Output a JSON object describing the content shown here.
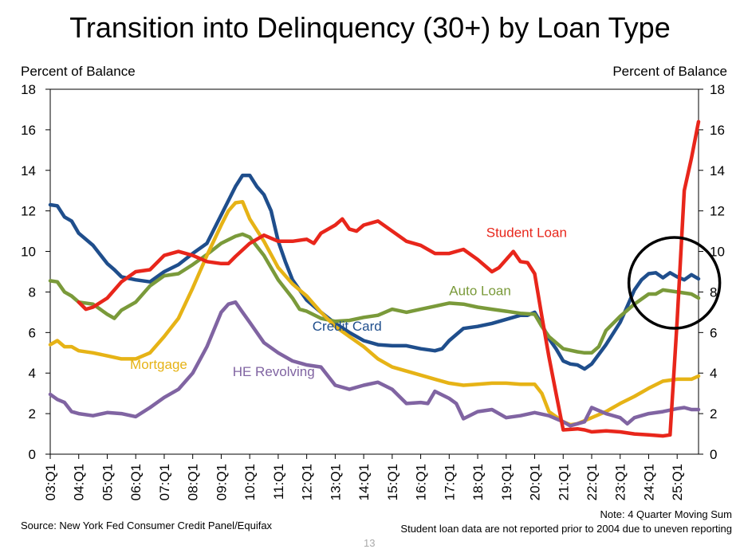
{
  "chart_data": {
    "type": "line",
    "title": "Transition into Delinquency (30+) by Loan Type",
    "ylabel_left": "Percent of Balance",
    "ylabel_right": "Percent of Balance",
    "ylim": [
      0,
      18
    ],
    "yticks": [
      0,
      2,
      4,
      6,
      8,
      10,
      12,
      14,
      16,
      18
    ],
    "xlim": [
      2003.0,
      2025.75
    ],
    "xtick_labels": [
      "03:Q1",
      "04:Q1",
      "05:Q1",
      "06:Q1",
      "07:Q1",
      "08:Q1",
      "09:Q1",
      "10:Q1",
      "11:Q1",
      "12:Q1",
      "13:Q1",
      "14:Q1",
      "15:Q1",
      "16:Q1",
      "17:Q1",
      "18:Q1",
      "19:Q1",
      "20:Q1",
      "21:Q1",
      "22:Q1",
      "23:Q1",
      "24:Q1",
      "25:Q1"
    ],
    "series": [
      {
        "name": "Credit Card",
        "color": "#1f4e8c",
        "label_at": [
          2012.2,
          6.1
        ],
        "points": [
          [
            2003.0,
            12.3
          ],
          [
            2003.25,
            12.25
          ],
          [
            2003.5,
            11.7
          ],
          [
            2003.75,
            11.5
          ],
          [
            2004.0,
            10.9
          ],
          [
            2004.5,
            10.3
          ],
          [
            2005.0,
            9.4
          ],
          [
            2005.25,
            9.1
          ],
          [
            2005.5,
            8.75
          ],
          [
            2006.0,
            8.6
          ],
          [
            2006.5,
            8.5
          ],
          [
            2007.0,
            9.0
          ],
          [
            2007.5,
            9.35
          ],
          [
            2008.0,
            9.9
          ],
          [
            2008.5,
            10.4
          ],
          [
            2009.0,
            11.8
          ],
          [
            2009.5,
            13.2
          ],
          [
            2009.75,
            13.75
          ],
          [
            2010.0,
            13.75
          ],
          [
            2010.25,
            13.2
          ],
          [
            2010.5,
            12.8
          ],
          [
            2010.75,
            12.0
          ],
          [
            2011.0,
            10.5
          ],
          [
            2011.25,
            9.5
          ],
          [
            2011.5,
            8.6
          ],
          [
            2012.0,
            7.6
          ],
          [
            2012.5,
            7.0
          ],
          [
            2013.0,
            6.45
          ],
          [
            2013.5,
            6.0
          ],
          [
            2014.0,
            5.6
          ],
          [
            2014.5,
            5.4
          ],
          [
            2015.0,
            5.35
          ],
          [
            2015.5,
            5.35
          ],
          [
            2016.0,
            5.2
          ],
          [
            2016.5,
            5.1
          ],
          [
            2016.75,
            5.2
          ],
          [
            2017.0,
            5.6
          ],
          [
            2017.5,
            6.2
          ],
          [
            2018.0,
            6.3
          ],
          [
            2018.5,
            6.45
          ],
          [
            2019.0,
            6.65
          ],
          [
            2019.5,
            6.85
          ],
          [
            2019.75,
            6.85
          ],
          [
            2020.0,
            7.0
          ],
          [
            2020.25,
            6.4
          ],
          [
            2020.5,
            5.7
          ],
          [
            2020.75,
            5.2
          ],
          [
            2021.0,
            4.6
          ],
          [
            2021.25,
            4.45
          ],
          [
            2021.5,
            4.4
          ],
          [
            2021.75,
            4.2
          ],
          [
            2022.0,
            4.45
          ],
          [
            2022.5,
            5.4
          ],
          [
            2023.0,
            6.5
          ],
          [
            2023.25,
            7.3
          ],
          [
            2023.5,
            8.1
          ],
          [
            2023.75,
            8.6
          ],
          [
            2024.0,
            8.9
          ],
          [
            2024.25,
            8.95
          ],
          [
            2024.5,
            8.7
          ],
          [
            2024.75,
            8.95
          ],
          [
            2025.0,
            8.75
          ],
          [
            2025.25,
            8.6
          ],
          [
            2025.5,
            8.85
          ],
          [
            2025.75,
            8.65
          ]
        ]
      },
      {
        "name": "Auto Loan",
        "color": "#7a9a3a",
        "label_at": [
          2017.0,
          7.85
        ],
        "points": [
          [
            2003.0,
            8.55
          ],
          [
            2003.25,
            8.5
          ],
          [
            2003.5,
            8.0
          ],
          [
            2003.75,
            7.8
          ],
          [
            2004.0,
            7.5
          ],
          [
            2004.5,
            7.4
          ],
          [
            2005.0,
            6.9
          ],
          [
            2005.25,
            6.7
          ],
          [
            2005.5,
            7.1
          ],
          [
            2006.0,
            7.5
          ],
          [
            2006.5,
            8.3
          ],
          [
            2007.0,
            8.8
          ],
          [
            2007.5,
            8.9
          ],
          [
            2008.0,
            9.35
          ],
          [
            2008.5,
            9.85
          ],
          [
            2009.0,
            10.4
          ],
          [
            2009.5,
            10.75
          ],
          [
            2009.75,
            10.85
          ],
          [
            2010.0,
            10.7
          ],
          [
            2010.5,
            9.8
          ],
          [
            2011.0,
            8.6
          ],
          [
            2011.5,
            7.7
          ],
          [
            2011.75,
            7.15
          ],
          [
            2012.0,
            7.05
          ],
          [
            2012.5,
            6.7
          ],
          [
            2013.0,
            6.55
          ],
          [
            2013.5,
            6.6
          ],
          [
            2014.0,
            6.75
          ],
          [
            2014.5,
            6.85
          ],
          [
            2015.0,
            7.15
          ],
          [
            2015.5,
            7.0
          ],
          [
            2016.0,
            7.15
          ],
          [
            2016.5,
            7.3
          ],
          [
            2017.0,
            7.45
          ],
          [
            2017.5,
            7.4
          ],
          [
            2018.0,
            7.25
          ],
          [
            2018.5,
            7.15
          ],
          [
            2019.0,
            7.05
          ],
          [
            2019.5,
            6.95
          ],
          [
            2020.0,
            6.9
          ],
          [
            2020.25,
            6.3
          ],
          [
            2020.5,
            5.8
          ],
          [
            2021.0,
            5.2
          ],
          [
            2021.5,
            5.05
          ],
          [
            2021.75,
            5.0
          ],
          [
            2022.0,
            5.0
          ],
          [
            2022.25,
            5.3
          ],
          [
            2022.5,
            6.1
          ],
          [
            2023.0,
            6.8
          ],
          [
            2023.5,
            7.4
          ],
          [
            2024.0,
            7.9
          ],
          [
            2024.25,
            7.9
          ],
          [
            2024.5,
            8.1
          ],
          [
            2025.0,
            8.0
          ],
          [
            2025.5,
            7.9
          ],
          [
            2025.75,
            7.7
          ]
        ]
      },
      {
        "name": "Mortgage",
        "color": "#e6b316",
        "label_at": [
          2005.8,
          4.2
        ],
        "points": [
          [
            2003.0,
            5.4
          ],
          [
            2003.25,
            5.6
          ],
          [
            2003.5,
            5.3
          ],
          [
            2003.75,
            5.3
          ],
          [
            2004.0,
            5.1
          ],
          [
            2004.5,
            5.0
          ],
          [
            2005.0,
            4.85
          ],
          [
            2005.5,
            4.7
          ],
          [
            2006.0,
            4.7
          ],
          [
            2006.5,
            5.0
          ],
          [
            2007.0,
            5.8
          ],
          [
            2007.5,
            6.7
          ],
          [
            2008.0,
            8.2
          ],
          [
            2008.5,
            9.8
          ],
          [
            2009.0,
            11.3
          ],
          [
            2009.25,
            12.0
          ],
          [
            2009.5,
            12.4
          ],
          [
            2009.75,
            12.45
          ],
          [
            2010.0,
            11.6
          ],
          [
            2010.5,
            10.5
          ],
          [
            2011.0,
            9.2
          ],
          [
            2011.5,
            8.4
          ],
          [
            2012.0,
            7.8
          ],
          [
            2012.5,
            7.0
          ],
          [
            2013.0,
            6.3
          ],
          [
            2013.5,
            5.8
          ],
          [
            2014.0,
            5.3
          ],
          [
            2014.5,
            4.7
          ],
          [
            2015.0,
            4.3
          ],
          [
            2015.5,
            4.1
          ],
          [
            2016.0,
            3.9
          ],
          [
            2016.5,
            3.7
          ],
          [
            2017.0,
            3.5
          ],
          [
            2017.5,
            3.4
          ],
          [
            2018.0,
            3.45
          ],
          [
            2018.5,
            3.5
          ],
          [
            2019.0,
            3.5
          ],
          [
            2019.5,
            3.45
          ],
          [
            2020.0,
            3.45
          ],
          [
            2020.25,
            3.0
          ],
          [
            2020.5,
            2.1
          ],
          [
            2021.0,
            1.6
          ],
          [
            2021.25,
            1.45
          ],
          [
            2021.5,
            1.5
          ],
          [
            2022.0,
            1.8
          ],
          [
            2022.5,
            2.1
          ],
          [
            2023.0,
            2.5
          ],
          [
            2023.5,
            2.85
          ],
          [
            2024.0,
            3.25
          ],
          [
            2024.5,
            3.6
          ],
          [
            2025.0,
            3.7
          ],
          [
            2025.5,
            3.7
          ],
          [
            2025.75,
            3.85
          ]
        ]
      },
      {
        "name": "HE Revolving",
        "color": "#8064a2",
        "label_at": [
          2009.4,
          3.85
        ],
        "points": [
          [
            2003.0,
            2.95
          ],
          [
            2003.25,
            2.7
          ],
          [
            2003.5,
            2.55
          ],
          [
            2003.75,
            2.1
          ],
          [
            2004.0,
            2.0
          ],
          [
            2004.5,
            1.9
          ],
          [
            2005.0,
            2.05
          ],
          [
            2005.5,
            2.0
          ],
          [
            2006.0,
            1.85
          ],
          [
            2006.5,
            2.3
          ],
          [
            2007.0,
            2.8
          ],
          [
            2007.5,
            3.2
          ],
          [
            2008.0,
            4.0
          ],
          [
            2008.5,
            5.3
          ],
          [
            2009.0,
            7.0
          ],
          [
            2009.25,
            7.4
          ],
          [
            2009.5,
            7.5
          ],
          [
            2009.75,
            7.0
          ],
          [
            2010.0,
            6.5
          ],
          [
            2010.5,
            5.5
          ],
          [
            2011.0,
            5.0
          ],
          [
            2011.5,
            4.6
          ],
          [
            2012.0,
            4.4
          ],
          [
            2012.5,
            4.3
          ],
          [
            2013.0,
            3.4
          ],
          [
            2013.5,
            3.2
          ],
          [
            2014.0,
            3.4
          ],
          [
            2014.5,
            3.55
          ],
          [
            2015.0,
            3.2
          ],
          [
            2015.5,
            2.5
          ],
          [
            2016.0,
            2.55
          ],
          [
            2016.25,
            2.5
          ],
          [
            2016.5,
            3.1
          ],
          [
            2017.0,
            2.75
          ],
          [
            2017.25,
            2.5
          ],
          [
            2017.5,
            1.75
          ],
          [
            2018.0,
            2.1
          ],
          [
            2018.5,
            2.2
          ],
          [
            2019.0,
            1.8
          ],
          [
            2019.5,
            1.9
          ],
          [
            2020.0,
            2.05
          ],
          [
            2020.5,
            1.9
          ],
          [
            2021.0,
            1.6
          ],
          [
            2021.25,
            1.4
          ],
          [
            2021.5,
            1.5
          ],
          [
            2021.75,
            1.6
          ],
          [
            2022.0,
            2.3
          ],
          [
            2022.5,
            2.0
          ],
          [
            2023.0,
            1.8
          ],
          [
            2023.25,
            1.5
          ],
          [
            2023.5,
            1.8
          ],
          [
            2024.0,
            2.0
          ],
          [
            2024.5,
            2.1
          ],
          [
            2025.0,
            2.25
          ],
          [
            2025.25,
            2.3
          ],
          [
            2025.5,
            2.2
          ],
          [
            2025.75,
            2.2
          ]
        ]
      },
      {
        "name": "Student Loan",
        "color": "#e8261b",
        "label_at": [
          2018.3,
          10.7
        ],
        "points": [
          [
            2004.0,
            7.5
          ],
          [
            2004.25,
            7.15
          ],
          [
            2004.5,
            7.25
          ],
          [
            2005.0,
            7.7
          ],
          [
            2005.5,
            8.5
          ],
          [
            2006.0,
            9.0
          ],
          [
            2006.5,
            9.1
          ],
          [
            2007.0,
            9.8
          ],
          [
            2007.5,
            10.0
          ],
          [
            2008.0,
            9.8
          ],
          [
            2008.5,
            9.5
          ],
          [
            2009.0,
            9.4
          ],
          [
            2009.25,
            9.4
          ],
          [
            2009.5,
            9.75
          ],
          [
            2010.0,
            10.4
          ],
          [
            2010.5,
            10.8
          ],
          [
            2011.0,
            10.5
          ],
          [
            2011.5,
            10.5
          ],
          [
            2012.0,
            10.6
          ],
          [
            2012.25,
            10.4
          ],
          [
            2012.5,
            10.9
          ],
          [
            2013.0,
            11.3
          ],
          [
            2013.25,
            11.6
          ],
          [
            2013.5,
            11.1
          ],
          [
            2013.75,
            11.0
          ],
          [
            2014.0,
            11.3
          ],
          [
            2014.5,
            11.5
          ],
          [
            2015.0,
            11.0
          ],
          [
            2015.5,
            10.5
          ],
          [
            2016.0,
            10.3
          ],
          [
            2016.5,
            9.9
          ],
          [
            2017.0,
            9.9
          ],
          [
            2017.5,
            10.1
          ],
          [
            2018.0,
            9.6
          ],
          [
            2018.5,
            9.0
          ],
          [
            2018.75,
            9.2
          ],
          [
            2019.0,
            9.6
          ],
          [
            2019.25,
            10.0
          ],
          [
            2019.5,
            9.5
          ],
          [
            2019.75,
            9.45
          ],
          [
            2020.0,
            8.9
          ],
          [
            2020.25,
            6.8
          ],
          [
            2020.5,
            4.8
          ],
          [
            2020.75,
            3.0
          ],
          [
            2021.0,
            1.2
          ],
          [
            2021.5,
            1.25
          ],
          [
            2021.75,
            1.2
          ],
          [
            2022.0,
            1.1
          ],
          [
            2022.5,
            1.15
          ],
          [
            2023.0,
            1.1
          ],
          [
            2023.5,
            1.0
          ],
          [
            2024.0,
            0.95
          ],
          [
            2024.5,
            0.9
          ],
          [
            2024.75,
            0.95
          ],
          [
            2025.0,
            6.6
          ],
          [
            2025.25,
            13.0
          ],
          [
            2025.5,
            14.6
          ],
          [
            2025.75,
            16.4
          ]
        ]
      }
    ],
    "annotation": {
      "type": "circle",
      "center": [
        2024.9,
        8.45
      ],
      "label": "highlighted recent period"
    }
  },
  "notes": {
    "source": "Source: New York Fed Consumer Credit Panel/Equifax",
    "moving_sum": "Note: 4 Quarter Moving Sum",
    "student_loan": "Student loan data are not reported prior to 2004 due to uneven reporting"
  },
  "page_number": "13"
}
